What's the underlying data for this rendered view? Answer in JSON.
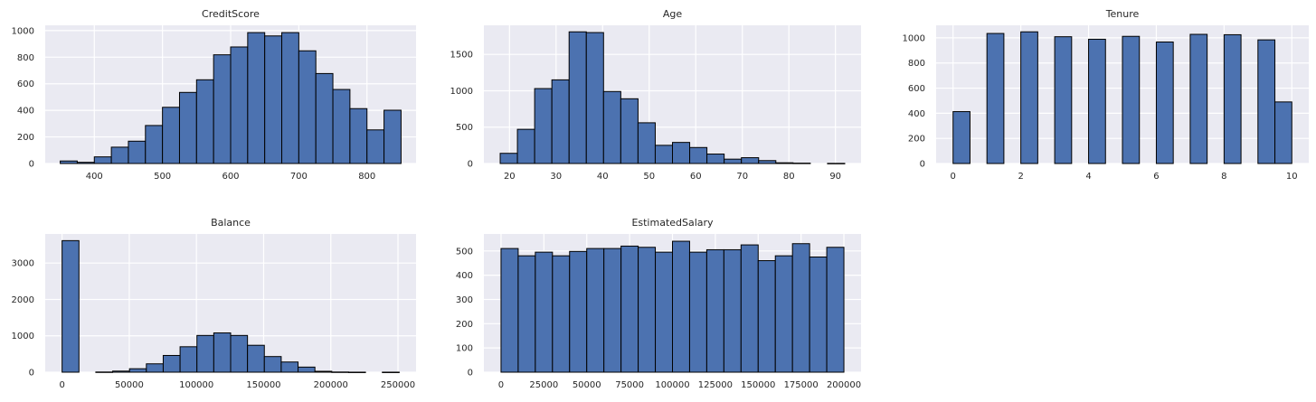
{
  "colors": {
    "bar_fill": "#4c72b0",
    "bar_edge": "#000000",
    "plot_bg": "#eaeaf2",
    "grid": "#ffffff"
  },
  "chart_data": [
    {
      "type": "bar",
      "subtype": "histogram",
      "title": "CreditScore",
      "xlabel": "",
      "ylabel": "",
      "bin_edges": [
        350,
        375,
        400,
        425,
        450,
        475,
        500,
        525,
        550,
        575,
        600,
        625,
        650,
        675,
        700,
        725,
        750,
        775,
        800,
        825,
        850
      ],
      "values": [
        19,
        9,
        50,
        123,
        168,
        286,
        423,
        535,
        630,
        818,
        877,
        985,
        960,
        985,
        848,
        677,
        557,
        413,
        253,
        401
      ],
      "xlim": [
        328,
        872
      ],
      "ylim": [
        0,
        1040
      ],
      "xticks": [
        400,
        500,
        600,
        700,
        800
      ],
      "yticks": [
        0,
        200,
        400,
        600,
        800,
        1000
      ],
      "grid": true
    },
    {
      "type": "bar",
      "subtype": "histogram",
      "title": "Age",
      "xlabel": "",
      "ylabel": "",
      "bin_edges": [
        18,
        21.7,
        25.4,
        29.1,
        32.8,
        36.5,
        40.2,
        43.9,
        47.6,
        51.3,
        55,
        58.7,
        62.4,
        66.1,
        69.8,
        73.5,
        77.2,
        80.9,
        84.6,
        88.3,
        92
      ],
      "values": [
        140,
        470,
        1030,
        1150,
        1810,
        1800,
        990,
        890,
        560,
        250,
        290,
        220,
        130,
        60,
        80,
        40,
        10,
        5,
        0,
        2
      ],
      "xlim": [
        14.5,
        95.5
      ],
      "ylim": [
        0,
        1900
      ],
      "xticks": [
        20,
        30,
        40,
        50,
        60,
        70,
        80,
        90
      ],
      "yticks": [
        0,
        500,
        1000,
        1500
      ],
      "grid": true
    },
    {
      "type": "bar",
      "subtype": "histogram",
      "title": "Tenure",
      "xlabel": "",
      "ylabel": "",
      "bin_edges": [
        0,
        0.5,
        1,
        1.5,
        2,
        2.5,
        3,
        3.5,
        4,
        4.5,
        5,
        5.5,
        6,
        6.5,
        7,
        7.5,
        8,
        8.5,
        9,
        9.5,
        10
      ],
      "values": [
        413,
        0,
        1035,
        0,
        1048,
        0,
        1009,
        0,
        989,
        0,
        1012,
        0,
        967,
        0,
        1028,
        0,
        1025,
        0,
        984,
        490
      ],
      "xlim": [
        -0.5,
        10.5
      ],
      "ylim": [
        0,
        1100
      ],
      "xticks": [
        0,
        2,
        4,
        6,
        8,
        10
      ],
      "yticks": [
        0,
        200,
        400,
        600,
        800,
        1000
      ],
      "grid": true
    },
    {
      "type": "bar",
      "subtype": "histogram",
      "title": "Balance",
      "xlabel": "",
      "ylabel": "",
      "bin_edges": [
        0,
        12545,
        25090,
        37635,
        50180,
        62725,
        75270,
        87815,
        100360,
        112905,
        125450,
        137995,
        150540,
        163085,
        175630,
        188175,
        200720,
        213265,
        225810,
        238355,
        250900
      ],
      "values": [
        3617,
        0,
        5,
        30,
        95,
        230,
        460,
        700,
        1010,
        1080,
        1010,
        740,
        430,
        280,
        140,
        25,
        5,
        1,
        0,
        1
      ],
      "xlim": [
        -12545,
        263445
      ],
      "ylim": [
        0,
        3800
      ],
      "xticks": [
        0,
        50000,
        100000,
        150000,
        200000,
        250000
      ],
      "yticks": [
        0,
        1000,
        2000,
        3000
      ],
      "grid": true
    },
    {
      "type": "bar",
      "subtype": "histogram",
      "title": "EstimatedSalary",
      "xlabel": "",
      "ylabel": "",
      "bin_edges": [
        0,
        10000,
        20000,
        30000,
        40000,
        50000,
        60000,
        70000,
        80000,
        90000,
        100000,
        110000,
        120000,
        130000,
        140000,
        150000,
        160000,
        170000,
        180000,
        190000,
        200000
      ],
      "values": [
        510,
        480,
        495,
        480,
        498,
        510,
        510,
        520,
        515,
        495,
        540,
        495,
        505,
        505,
        525,
        460,
        480,
        530,
        475,
        515
      ],
      "xlim": [
        -10000,
        210000
      ],
      "ylim": [
        0,
        570
      ],
      "xticks": [
        0,
        25000,
        50000,
        75000,
        100000,
        125000,
        150000,
        175000,
        200000
      ],
      "yticks": [
        0,
        100,
        200,
        300,
        400,
        500
      ],
      "grid": true
    }
  ]
}
